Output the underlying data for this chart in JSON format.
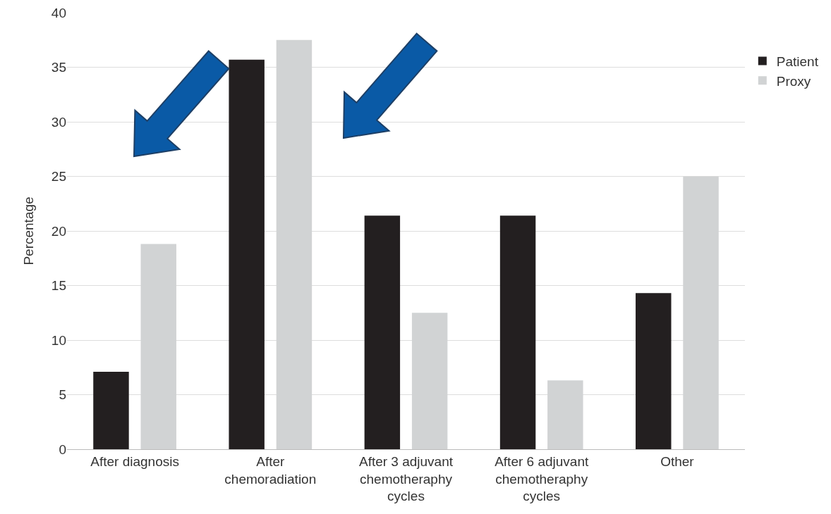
{
  "chart_data": {
    "type": "bar",
    "ylabel": "Percentage",
    "categories": [
      "After diagnosis",
      "After chemoradiation",
      "After 3 adjuvant chemotheraphy cycles",
      "After 6 adjuvant chemotheraphy cycles",
      "Other"
    ],
    "series": [
      {
        "name": "Patient",
        "color": "#231f20",
        "values": [
          7.1,
          35.7,
          21.4,
          21.4,
          14.3
        ]
      },
      {
        "name": "Proxy",
        "color": "#d1d3d4",
        "values": [
          18.8,
          37.5,
          12.5,
          6.3,
          25
        ]
      }
    ],
    "ylim": [
      0,
      40
    ],
    "yticks": [
      0,
      5,
      10,
      15,
      20,
      25,
      30,
      35,
      40
    ],
    "grid": "y",
    "legend": "right"
  }
}
